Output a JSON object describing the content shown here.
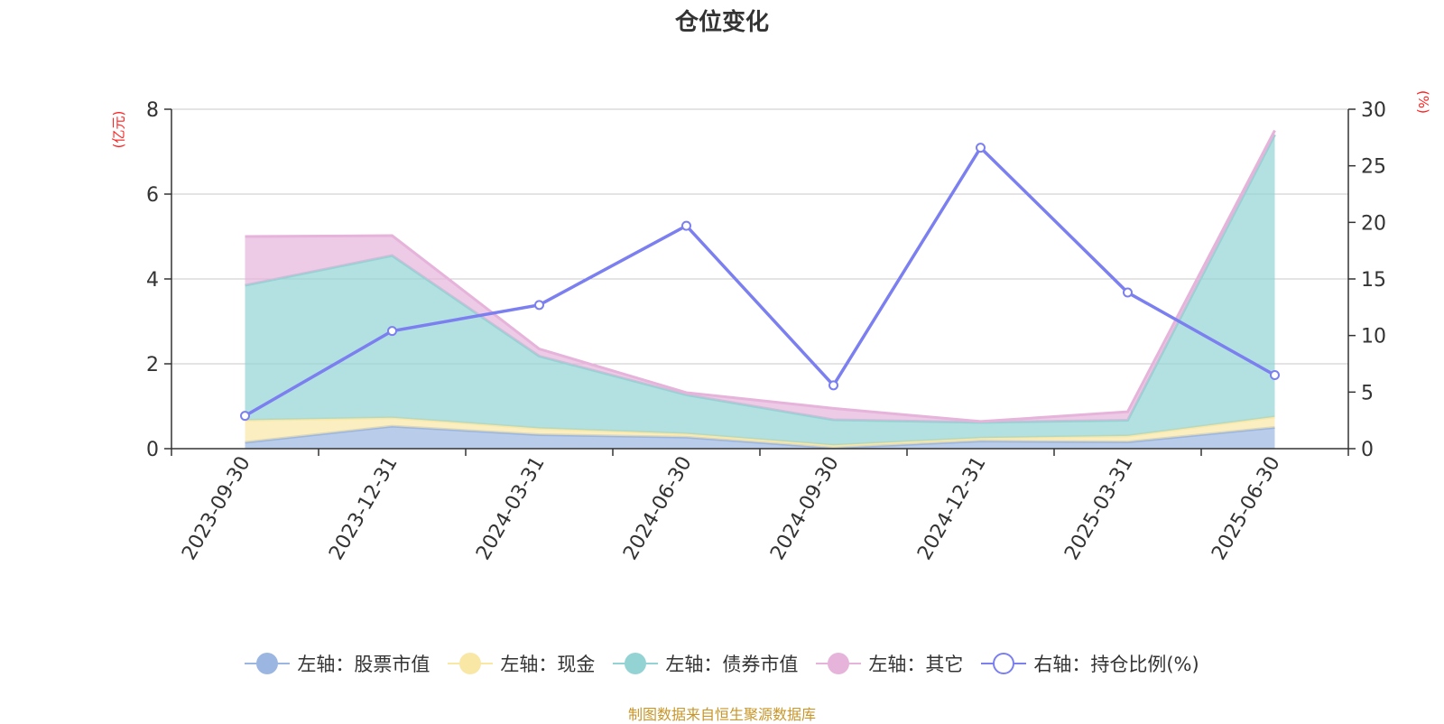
{
  "chart_data": {
    "type": "area",
    "title": "仓位变化",
    "categories": [
      "2023-09-30",
      "2023-12-31",
      "2024-03-31",
      "2024-06-30",
      "2024-09-30",
      "2024-12-31",
      "2025-03-31",
      "2025-06-30"
    ],
    "left_axis": {
      "unit_label": "(亿元)",
      "ylim": [
        0,
        8
      ],
      "ticks": [
        0,
        2,
        4,
        6,
        8
      ]
    },
    "right_axis": {
      "unit_label": "(%)",
      "ylim": [
        0,
        30
      ],
      "ticks": [
        0,
        5,
        10,
        15,
        20,
        25,
        30
      ]
    },
    "stacked": true,
    "grid": true,
    "legend_position": "bottom",
    "series": [
      {
        "name": "左轴：股票市值",
        "axis": "left",
        "kind": "stacked-area",
        "color": "#9bb6e0",
        "values": [
          0.15,
          0.53,
          0.33,
          0.27,
          0.02,
          0.18,
          0.16,
          0.5
        ]
      },
      {
        "name": "左轴：现金",
        "axis": "left",
        "kind": "stacked-area",
        "color": "#f9e7a6",
        "values": [
          0.52,
          0.2,
          0.15,
          0.08,
          0.06,
          0.07,
          0.14,
          0.25
        ]
      },
      {
        "name": "左轴：债券市值",
        "axis": "left",
        "kind": "stacked-area",
        "color": "#93d3d3",
        "values": [
          3.18,
          3.82,
          1.7,
          0.92,
          0.6,
          0.37,
          0.37,
          6.65
        ]
      },
      {
        "name": "左轴：其它",
        "axis": "left",
        "kind": "stacked-area",
        "color": "#e6b3da",
        "values": [
          1.15,
          0.47,
          0.17,
          0.05,
          0.27,
          0.02,
          0.2,
          0.1
        ]
      },
      {
        "name": "右轴：持仓比例(%)",
        "axis": "right",
        "kind": "line",
        "color": "#7b7ff0",
        "values": [
          2.9,
          10.4,
          12.7,
          19.7,
          5.6,
          26.6,
          13.8,
          6.5
        ]
      }
    ],
    "source_note": "制图数据来自恒生聚源数据库"
  }
}
